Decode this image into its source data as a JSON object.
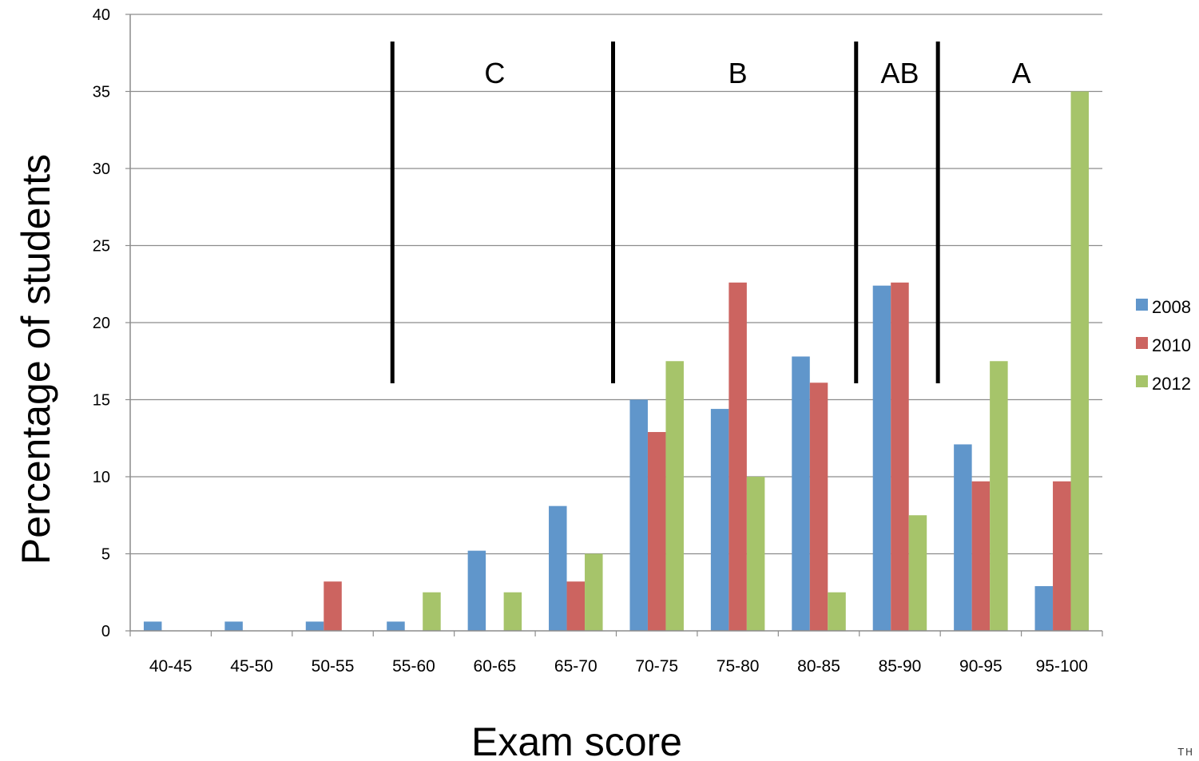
{
  "chart_data": {
    "type": "bar",
    "title": "",
    "xlabel": "Exam score",
    "ylabel": "Percentage of students",
    "ylim": [
      0,
      40
    ],
    "yticks": [
      0,
      5,
      10,
      15,
      20,
      25,
      30,
      35,
      40
    ],
    "grid": "horizontal",
    "legend_position": "right",
    "categories": [
      "40-45",
      "45-50",
      "50-55",
      "55-60",
      "60-65",
      "65-70",
      "70-75",
      "75-80",
      "80-85",
      "85-90",
      "90-95",
      "95-100"
    ],
    "series": [
      {
        "name": "2008",
        "color": "#6096cb",
        "values": [
          0.6,
          0.6,
          0.6,
          0.6,
          5.2,
          8.1,
          15.0,
          14.4,
          17.8,
          22.4,
          12.1,
          2.9
        ]
      },
      {
        "name": "2010",
        "color": "#cc6460",
        "values": [
          0,
          0,
          3.2,
          0,
          0,
          3.2,
          12.9,
          22.6,
          16.1,
          22.6,
          9.7,
          9.7
        ]
      },
      {
        "name": "2012",
        "color": "#a6c46a",
        "values": [
          0,
          0,
          0,
          2.5,
          2.5,
          5.0,
          17.5,
          10.0,
          2.5,
          7.5,
          17.5,
          35.0
        ]
      }
    ],
    "annotations": [
      {
        "text": "C",
        "from_category": "55-60",
        "to_category": "65-70"
      },
      {
        "text": "B",
        "from_category": "70-75",
        "to_category": "80-85"
      },
      {
        "text": "AB",
        "from_category": "85-90",
        "to_category": "85-90"
      },
      {
        "text": "A",
        "from_category": "90-95",
        "to_category": "95-100"
      }
    ]
  },
  "footer_mark": "TH"
}
